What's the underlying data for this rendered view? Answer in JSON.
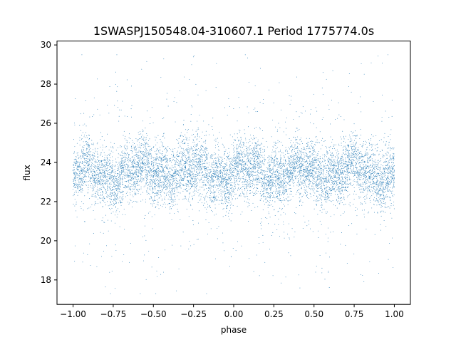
{
  "chart_data": {
    "type": "scatter",
    "title": "1SWASPJ150548.04-310607.1 Period 1775774.0s",
    "xlabel": "phase",
    "ylabel": "flux",
    "xlim": [
      -1.1,
      1.1
    ],
    "ylim": [
      16.75,
      30.2
    ],
    "x_ticks": [
      -1.0,
      -0.75,
      -0.5,
      -0.25,
      0.0,
      0.25,
      0.5,
      0.75,
      1.0
    ],
    "x_tick_labels": [
      "−1.00",
      "−0.75",
      "−0.50",
      "−0.25",
      "0.00",
      "0.25",
      "0.50",
      "0.75",
      "1.00"
    ],
    "y_ticks": [
      18,
      20,
      22,
      24,
      26,
      28,
      30
    ],
    "y_tick_labels": [
      "18",
      "20",
      "22",
      "24",
      "26",
      "28",
      "30"
    ],
    "grid": false,
    "point_color": "#1f77b4",
    "series": [
      {
        "phase_range": [
          -1.0,
          1.0
        ],
        "flux_center": 23.5,
        "flux_core_min": 21.5,
        "flux_core_max": 25.8,
        "flux_min": 17.3,
        "flux_max": 29.5
      }
    ]
  }
}
